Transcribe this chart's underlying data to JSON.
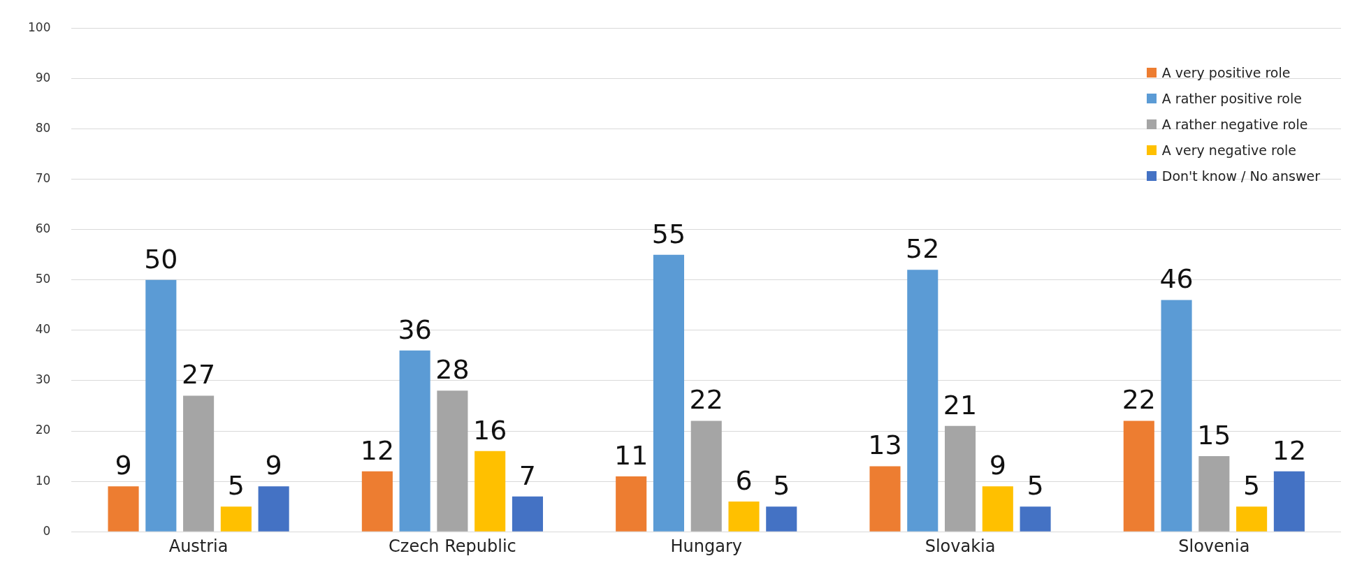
{
  "chart_data": {
    "type": "bar",
    "categories": [
      "Austria",
      "Czech Republic",
      "Hungary",
      "Slovakia",
      "Slovenia"
    ],
    "series": [
      {
        "name": "A very positive role",
        "color": "#ed7d31",
        "values": [
          9,
          12,
          11,
          13,
          22
        ]
      },
      {
        "name": "A rather positive role",
        "color": "#5b9bd5",
        "values": [
          50,
          36,
          55,
          52,
          46
        ]
      },
      {
        "name": "A rather negative role",
        "color": "#a5a5a5",
        "values": [
          27,
          28,
          22,
          21,
          15
        ]
      },
      {
        "name": "A very negative role",
        "color": "#ffc000",
        "values": [
          5,
          16,
          6,
          9,
          5
        ]
      },
      {
        "name": "Don't know / No answer",
        "color": "#4472c4",
        "values": [
          9,
          7,
          5,
          5,
          12
        ]
      }
    ],
    "ylim": [
      0,
      100
    ],
    "yticks": [
      0,
      10,
      20,
      30,
      40,
      50,
      60,
      70,
      80,
      90,
      100
    ],
    "grid": "y",
    "legend": "top right",
    "data_labels": true
  }
}
